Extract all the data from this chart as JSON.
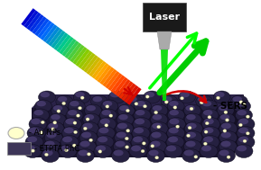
{
  "background_color": "#ffffff",
  "laser_label": "Laser",
  "sers_label": "- SERS",
  "legend_au_label": "- Au NPs",
  "legend_etpta_label": "- ETPTA PhC",
  "beam_colors": [
    "#0000cc",
    "#0066ff",
    "#00cc88",
    "#88cc00",
    "#ffaa00",
    "#ff4400",
    "#cc0000"
  ],
  "sphere_base_color": "#252040",
  "sphere_highlight_color": "#5a4a88",
  "sphere_dark_color": "#1a1530",
  "crystal_front_color": "#1a1530",
  "crystal_side_color": "#151025",
  "laser_body_color": "#1a1a1a",
  "laser_tip_color": "#aaaaaa",
  "green_arrow_color": "#00cc00",
  "red_arrow_color": "#cc0000",
  "au_np_color": "#ffffcc",
  "etpta_color": "#3d3558"
}
